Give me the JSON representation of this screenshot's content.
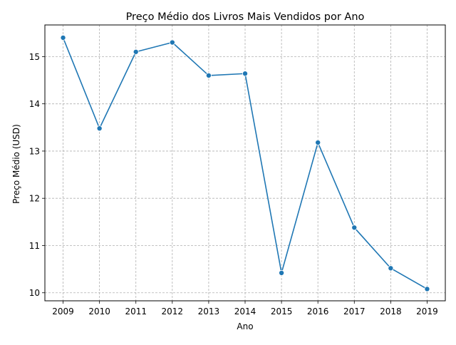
{
  "chart_data": {
    "type": "line",
    "title": "Preço Médio dos Livros Mais Vendidos por Ano",
    "xlabel": "Ano",
    "ylabel": "Preço Médio (USD)",
    "x": [
      2009,
      2010,
      2011,
      2012,
      2013,
      2014,
      2015,
      2016,
      2017,
      2018,
      2019
    ],
    "xtick_labels": [
      "2009",
      "2010",
      "2011",
      "2012",
      "2013",
      "2014",
      "2015",
      "2016",
      "2017",
      "2018",
      "2019"
    ],
    "series": [
      {
        "values": [
          15.4,
          13.48,
          15.1,
          15.3,
          14.6,
          14.64,
          10.42,
          13.18,
          11.38,
          10.52,
          10.08
        ],
        "color": "#1f77b4",
        "marker": "circle"
      }
    ],
    "ylim": [
      9.83,
      15.67
    ],
    "yticks": [
      10,
      11,
      12,
      13,
      14,
      15
    ],
    "ytick_labels": [
      "10",
      "11",
      "12",
      "13",
      "14",
      "15"
    ],
    "grid": true,
    "grid_style": "dashed"
  }
}
